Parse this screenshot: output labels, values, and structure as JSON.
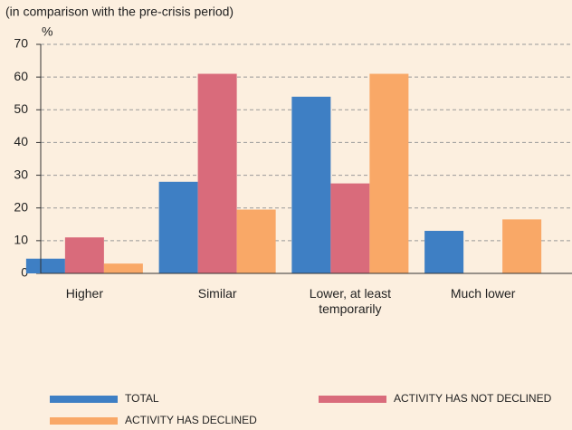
{
  "chart_data": {
    "type": "bar",
    "subtitle": "(in comparison with the pre-crisis period)",
    "y_label": "%",
    "categories": [
      "Higher",
      "Similar",
      "Lower, at least temporarily",
      "Much lower"
    ],
    "series": [
      {
        "name": "TOTAL",
        "color": "#3e7fc4",
        "values": [
          4.5,
          28,
          54,
          13
        ]
      },
      {
        "name": "ACTIVITY HAS NOT DECLINED",
        "color": "#d96b7b",
        "values": [
          11,
          61,
          27.5,
          null
        ]
      },
      {
        "name": "ACTIVITY HAS DECLINED",
        "color": "#f9a867",
        "values": [
          3,
          19.5,
          61,
          16.5
        ]
      }
    ],
    "ylim": [
      0,
      70
    ],
    "yticks": [
      0,
      10,
      20,
      30,
      40,
      50,
      60,
      70
    ],
    "grid": true,
    "legend": "bottom"
  }
}
